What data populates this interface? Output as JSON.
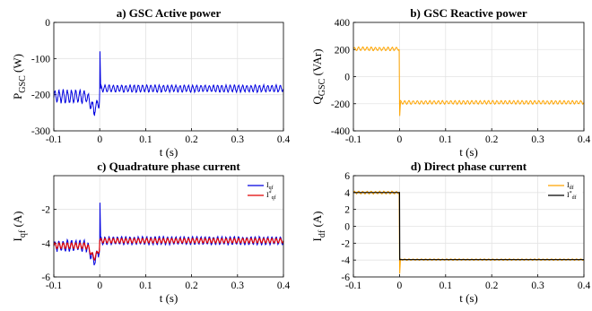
{
  "chart_data": [
    {
      "type": "line",
      "title": "a) GSC Active power",
      "xlabel": "t (s)",
      "ylabel_main": "P",
      "ylabel_sub": "GSC",
      "ylabel_unit": " (W)",
      "xlim": [
        -0.1,
        0.4
      ],
      "ylim": [
        -300,
        0
      ],
      "xticks": [
        "-0.1",
        "0",
        "0.1",
        "0.2",
        "0.3",
        "0.4"
      ],
      "yticks": [
        "-300",
        "-200",
        "-100",
        "0"
      ],
      "grid": true,
      "legend": false,
      "signal": {
        "pre": -205,
        "post": -183,
        "ripple_pre": 16,
        "ripple_post": 9,
        "freq": 110,
        "spike": -80,
        "dip": -240
      },
      "series": [
        {
          "color": "#0000e0",
          "values_sampled": {
            "t": [
              -0.1,
              -0.05,
              -0.01,
              0.0,
              0.005,
              0.1,
              0.2,
              0.3,
              0.4
            ],
            "y": [
              -205,
              -210,
              -255,
              -80,
              -175,
              -183,
              -183,
              -183,
              -183
            ]
          }
        }
      ]
    },
    {
      "type": "line",
      "title": "b) GSC Reactive power",
      "xlabel": "t (s)",
      "ylabel_main": "Q",
      "ylabel_sub": "GSC",
      "ylabel_unit": " (VAr)",
      "xlim": [
        -0.1,
        0.4
      ],
      "ylim": [
        -400,
        400
      ],
      "xticks": [
        "-0.1",
        "0",
        "0.1",
        "0.2",
        "0.3",
        "0.4"
      ],
      "yticks": [
        "-400",
        "-200",
        "0",
        "200",
        "400"
      ],
      "grid": true,
      "legend": false,
      "signal": {
        "pre": 205,
        "post": -190,
        "ripple_pre": 12,
        "ripple_post": 12,
        "freq": 110,
        "spike": -290
      },
      "series": [
        {
          "color": "#ffa500",
          "values_sampled": {
            "t": [
              -0.1,
              -0.05,
              -0.005,
              0.0,
              0.005,
              0.1,
              0.2,
              0.3,
              0.4
            ],
            "y": [
              205,
              200,
              230,
              220,
              -290,
              -190,
              -190,
              -190,
              -190
            ]
          }
        }
      ]
    },
    {
      "type": "line",
      "title": "c) Quadrature phase current",
      "xlabel": "t (s)",
      "ylabel_main": "I",
      "ylabel_sub": "qf",
      "ylabel_unit": " (A)",
      "xlim": [
        -0.1,
        0.4
      ],
      "ylim": [
        -6,
        0
      ],
      "xticks": [
        "-0.1",
        "0",
        "0.1",
        "0.2",
        "0.3",
        "0.4"
      ],
      "yticks": [
        "-6",
        "-4",
        "-2"
      ],
      "grid": true,
      "legend": "top-right",
      "signal": {
        "pre": -4.15,
        "post": -3.85,
        "ripple_pre": 0.3,
        "ripple_post": 0.22,
        "freq": 110,
        "spike": -1.6,
        "dip": -5.0
      },
      "series": [
        {
          "name_main": "I",
          "name_sub": "qf",
          "color": "#0000e0",
          "values_sampled": {
            "t": [
              -0.1,
              -0.01,
              0.0,
              0.005,
              0.1,
              0.4
            ],
            "y": [
              -4.2,
              -4.9,
              -1.6,
              -4.0,
              -3.85,
              -3.85
            ]
          }
        },
        {
          "name_main": "I",
          "name_sub": "qf",
          "name_sup": "*",
          "color": "#e00000",
          "values_sampled": {
            "t": [
              -0.1,
              -0.01,
              0.0,
              0.1,
              0.4
            ],
            "y": [
              -4.2,
              -4.9,
              -4.6,
              -3.85,
              -3.85
            ]
          }
        }
      ]
    },
    {
      "type": "line",
      "title": "d) Direct phase current",
      "xlabel": "t (s)",
      "ylabel_main": "I",
      "ylabel_sub": "df",
      "ylabel_unit": " (A)",
      "xlim": [
        -0.1,
        0.4
      ],
      "ylim": [
        -6,
        6
      ],
      "xticks": [
        "-0.1",
        "0",
        "0.1",
        "0.2",
        "0.3",
        "0.4"
      ],
      "yticks": [
        "-6",
        "-4",
        "-2",
        "0",
        "2",
        "4",
        "6"
      ],
      "grid": true,
      "legend": "top-right",
      "signal": {
        "pre": 4.0,
        "post": -3.95,
        "ripple_pre": 0.15,
        "ripple_post": 0.08,
        "freq": 110,
        "spike": -5.6
      },
      "series": [
        {
          "name_main": "I",
          "name_sub": "df",
          "color": "#ffa500",
          "values_sampled": {
            "t": [
              -0.1,
              -0.01,
              0.0,
              0.005,
              0.1,
              0.4
            ],
            "y": [
              4.0,
              4.3,
              4.0,
              -5.6,
              -3.95,
              -3.95
            ]
          }
        },
        {
          "name_main": "I",
          "name_sub": "df",
          "name_sup": "*",
          "color": "#000000",
          "values_sampled": {
            "t": [
              -0.1,
              0.0,
              0.001,
              0.4
            ],
            "y": [
              4.0,
              4.0,
              -4.0,
              -4.0
            ]
          }
        }
      ]
    }
  ]
}
